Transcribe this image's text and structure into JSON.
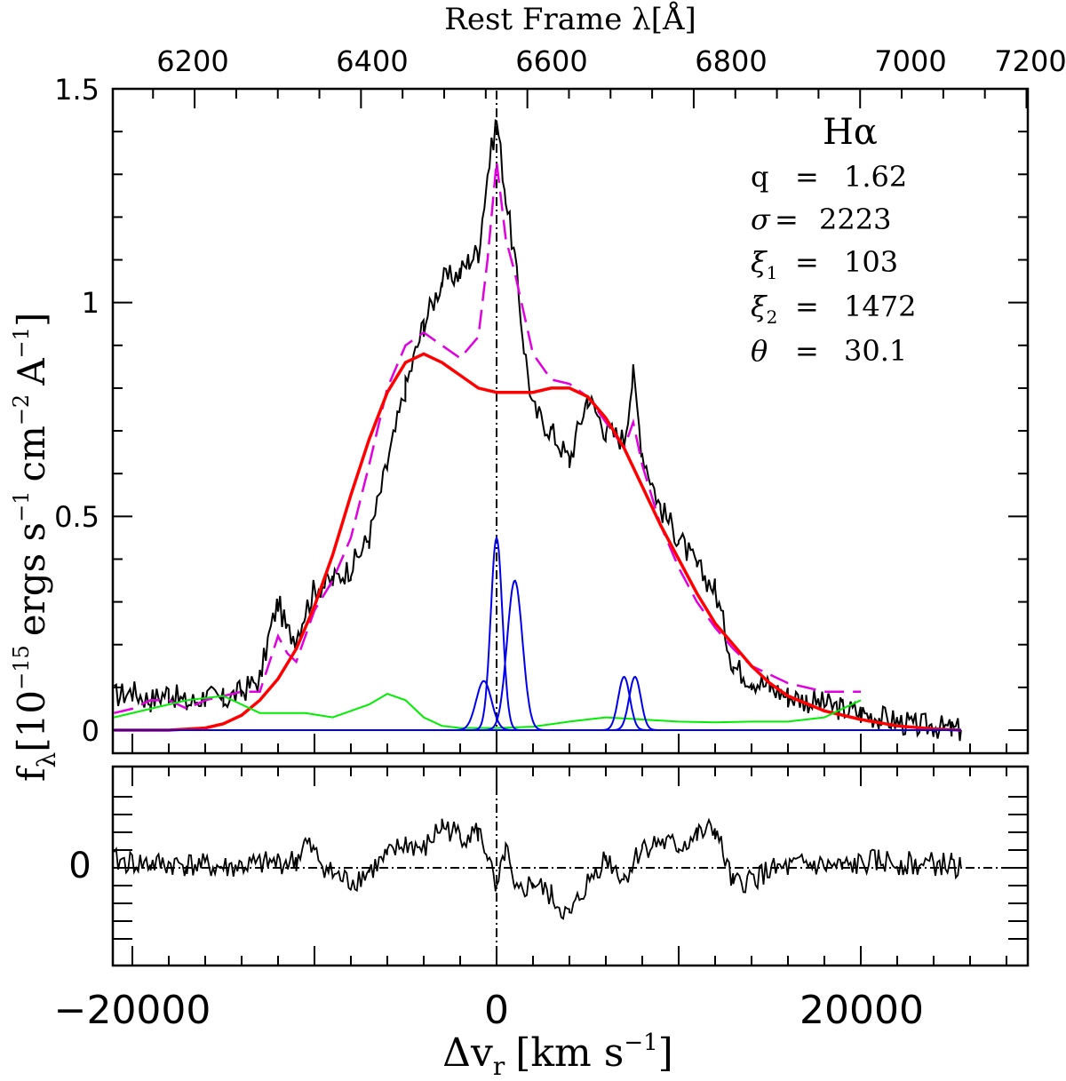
{
  "chart_data": [
    {
      "type": "line",
      "panel": "main",
      "top_axis_label": "Rest Frame λ[Å]",
      "top_ticks": [
        "6200",
        "6400",
        "6600",
        "6800",
        "7000",
        "7200"
      ],
      "top_tick_values": [
        6200,
        6400,
        6600,
        6800,
        7000,
        7200
      ],
      "ylabel": "f_λ[10^-15 ergs s^-1 cm^-2 A^-1]",
      "ylabel_parts": {
        "f": "f",
        "lambda_sub": "λ",
        "open": "[",
        "ten": "10",
        "exp15": "−15",
        "ergs": "ergs s",
        "exp1": "−1",
        "cm": "cm",
        "exp2": "−2",
        "A": "A",
        "exp1b": "−1",
        "close": "]"
      },
      "y_ticks": [
        "0",
        "0.5",
        "1",
        "1.5"
      ],
      "y_tick_values": [
        0,
        0.5,
        1,
        1.5
      ],
      "xlim": [
        -22000,
        29000
      ],
      "ylim": [
        -0.05,
        1.5
      ],
      "annotation_title": "Hα",
      "annotations": [
        {
          "label": "q",
          "eq": "=",
          "value": "1.62"
        },
        {
          "label": "σ",
          "eq": "=",
          "value": "2223"
        },
        {
          "label": "ξ",
          "sub": "1",
          "eq": "=",
          "value": "103"
        },
        {
          "label": "ξ",
          "sub": "2",
          "eq": "=",
          "value": "1472"
        },
        {
          "label": "θ",
          "eq": "=",
          "value": "30.1"
        }
      ],
      "series": [
        {
          "color": "#000000",
          "style": "solid",
          "x": [
            -21000,
            -20000,
            -19000,
            -18000,
            -17000,
            -16000,
            -15000,
            -14000,
            -13000,
            -12500,
            -12000,
            -11500,
            -11000,
            -10500,
            -10000,
            -9000,
            -8000,
            -7000,
            -6000,
            -5000,
            -4000,
            -3000,
            -2000,
            -1500,
            -1000,
            -500,
            0,
            500,
            1000,
            1500,
            2000,
            3000,
            4000,
            5000,
            6000,
            7000,
            7500,
            8000,
            9000,
            10000,
            11000,
            12000,
            13000,
            14000,
            15000,
            16000,
            17000,
            18000,
            19000,
            20000,
            21000,
            22000,
            23000,
            24000,
            25000,
            25500
          ],
          "values": [
            0.08,
            0.09,
            0.07,
            0.09,
            0.06,
            0.08,
            0.07,
            0.09,
            0.12,
            0.22,
            0.3,
            0.23,
            0.22,
            0.28,
            0.33,
            0.35,
            0.38,
            0.45,
            0.62,
            0.8,
            0.95,
            1.05,
            1.07,
            1.1,
            1.12,
            1.3,
            1.43,
            1.25,
            1.1,
            0.9,
            0.75,
            0.7,
            0.63,
            0.78,
            0.7,
            0.68,
            0.83,
            0.65,
            0.52,
            0.45,
            0.38,
            0.33,
            0.15,
            0.12,
            0.1,
            0.08,
            0.07,
            0.06,
            0.05,
            0.04,
            0.03,
            0.02,
            0.01,
            0.01,
            0.0,
            0.0
          ]
        },
        {
          "color": "#e000e0",
          "style": "dashed",
          "x": [
            -21000,
            -20000,
            -19000,
            -18000,
            -17000,
            -16000,
            -15000,
            -14000,
            -13000,
            -12000,
            -11500,
            -11000,
            -10000,
            -9000,
            -8000,
            -7000,
            -6000,
            -5000,
            -4000,
            -3000,
            -2000,
            -1000,
            -500,
            0,
            500,
            1000,
            2000,
            3000,
            4000,
            5000,
            6000,
            7000,
            7500,
            8000,
            9000,
            10000,
            11000,
            12000,
            13000,
            14000,
            15000,
            16000,
            17000,
            18000,
            19000,
            20000
          ],
          "values": [
            0.04,
            0.05,
            0.07,
            0.07,
            0.05,
            0.07,
            0.08,
            0.09,
            0.09,
            0.22,
            0.18,
            0.16,
            0.28,
            0.35,
            0.45,
            0.62,
            0.8,
            0.9,
            0.93,
            0.9,
            0.87,
            0.92,
            1.1,
            1.33,
            1.15,
            1.07,
            0.88,
            0.82,
            0.81,
            0.78,
            0.72,
            0.66,
            0.72,
            0.62,
            0.48,
            0.38,
            0.3,
            0.24,
            0.19,
            0.15,
            0.13,
            0.11,
            0.1,
            0.09,
            0.09,
            0.09
          ]
        },
        {
          "color": "#ff0000",
          "style": "solid",
          "x": [
            -21000,
            -18000,
            -16000,
            -15000,
            -14000,
            -13000,
            -12000,
            -11000,
            -10000,
            -9000,
            -8000,
            -7000,
            -6000,
            -5000,
            -4000,
            -3000,
            -2000,
            -1000,
            0,
            1000,
            2000,
            3000,
            4000,
            5000,
            6000,
            7000,
            8000,
            9000,
            10000,
            11000,
            12000,
            13000,
            14000,
            15000,
            16000,
            18000,
            20000,
            22000,
            24000,
            25500
          ],
          "values": [
            0.0,
            0.0,
            0.005,
            0.015,
            0.035,
            0.07,
            0.12,
            0.19,
            0.29,
            0.41,
            0.55,
            0.68,
            0.79,
            0.86,
            0.88,
            0.86,
            0.83,
            0.8,
            0.79,
            0.79,
            0.79,
            0.8,
            0.8,
            0.78,
            0.73,
            0.66,
            0.57,
            0.48,
            0.4,
            0.32,
            0.25,
            0.2,
            0.15,
            0.11,
            0.08,
            0.045,
            0.025,
            0.01,
            0.003,
            0.0
          ]
        },
        {
          "color": "#00ee00",
          "style": "solid",
          "x": [
            -21000,
            -19000,
            -17000,
            -15000,
            -14000,
            -13000,
            -12000,
            -10500,
            -9000,
            -7000,
            -6000,
            -5000,
            -4000,
            -3000,
            -2000,
            0,
            2000,
            4000,
            6000,
            8000,
            10000,
            12000,
            14000,
            16000,
            18000,
            19000,
            20000
          ],
          "values": [
            0.03,
            0.05,
            0.07,
            0.08,
            0.06,
            0.04,
            0.04,
            0.04,
            0.03,
            0.06,
            0.085,
            0.07,
            0.03,
            0.01,
            0.005,
            0.005,
            0.008,
            0.02,
            0.03,
            0.025,
            0.02,
            0.018,
            0.02,
            0.02,
            0.03,
            0.05,
            0.07
          ]
        },
        {
          "color": "#0000ee",
          "style": "solid",
          "profiles": [
            {
              "center": -700,
              "amplitude": 0.115,
              "sigma": 420
            },
            {
              "center": 0,
              "amplitude": 0.45,
              "sigma": 320
            },
            {
              "center": 1000,
              "amplitude": 0.35,
              "sigma": 420
            },
            {
              "center": 7000,
              "amplitude": 0.125,
              "sigma": 320
            },
            {
              "center": 7600,
              "amplitude": 0.125,
              "sigma": 320
            }
          ]
        }
      ]
    },
    {
      "type": "line",
      "panel": "residual",
      "xlabel": "Δv_r [km s^-1]",
      "xlabel_parts": {
        "delta_v": "Δv",
        "r_sub": "r",
        "open": "[km s",
        "exp": "−1",
        "close": "]"
      },
      "x_ticks": [
        "−20000",
        "0",
        "20000"
      ],
      "x_tick_values": [
        -20000,
        0,
        20000
      ],
      "y_ticks": [
        "0"
      ],
      "y_tick_values": [
        0
      ],
      "xlim": [
        -22000,
        29000
      ],
      "ylim": [
        -1.0,
        1.0
      ],
      "series": [
        {
          "color": "#000000",
          "style": "solid",
          "x": [
            -21000,
            -19000,
            -17000,
            -15000,
            -13000,
            -11000,
            -10500,
            -10000,
            -9000,
            -8000,
            -7000,
            -6000,
            -5000,
            -4000,
            -3000,
            -2000,
            -1000,
            -500,
            0,
            500,
            1000,
            2000,
            3000,
            4000,
            5000,
            6000,
            7000,
            8000,
            9000,
            10000,
            11000,
            12000,
            13000,
            14000,
            15000,
            17000,
            19000,
            21000,
            23000,
            25000,
            25500
          ],
          "values": [
            0.1,
            0.05,
            0.05,
            0.0,
            0.05,
            0.1,
            0.35,
            0.2,
            -0.1,
            -0.2,
            -0.05,
            0.15,
            0.35,
            0.25,
            0.6,
            0.45,
            0.5,
            0.2,
            -0.4,
            0.3,
            -0.4,
            -0.2,
            -0.4,
            -0.7,
            -0.2,
            0.15,
            -0.15,
            0.3,
            0.35,
            0.3,
            0.45,
            0.55,
            -0.25,
            -0.15,
            -0.05,
            0.05,
            0.0,
            0.1,
            0.05,
            0.05,
            0.0
          ]
        }
      ]
    }
  ]
}
